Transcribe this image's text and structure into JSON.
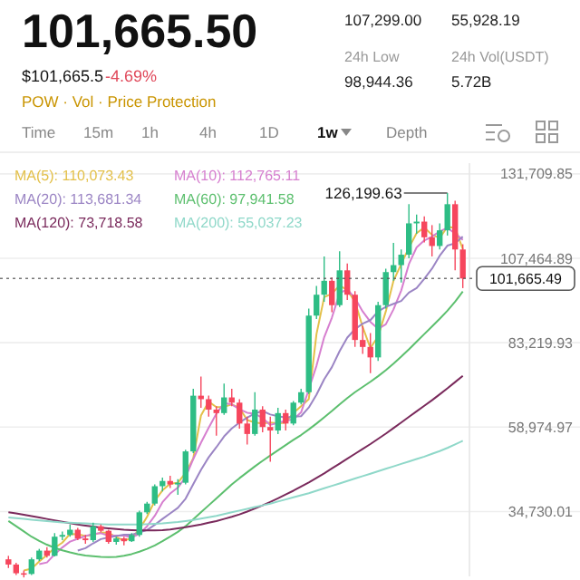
{
  "chart_data": {
    "type": "candlestick",
    "title": "101,665.50",
    "subtitle": "$101,665.5",
    "annotations": [
      "-4.69%",
      "POW · Vol · Price Protection",
      "107,299.00",
      "55,928.19",
      "24h Low",
      "24h Vol(USDT)",
      "98,944.36",
      "5.72B",
      "Time",
      "15m",
      "1h",
      "4h",
      "1D",
      "1w",
      "Depth",
      "126,199.63"
    ],
    "categories": [
      null,
      null,
      null,
      null,
      null,
      null,
      null,
      null,
      null,
      null,
      null,
      null,
      null,
      null,
      null,
      null,
      null,
      null,
      null,
      null,
      null,
      null,
      null,
      null,
      null,
      null,
      null,
      null,
      null,
      null,
      null,
      null,
      null,
      null,
      null,
      null,
      null,
      null,
      null,
      null,
      null,
      null,
      null,
      null,
      null,
      null,
      null,
      null,
      null,
      null,
      null,
      null,
      null,
      null,
      null,
      null,
      null,
      null,
      null,
      null
    ],
    "ohlc": [
      [
        21000,
        22000,
        18500,
        19500
      ],
      [
        19500,
        20000,
        16500,
        17000
      ],
      [
        17000,
        17800,
        15800,
        16800
      ],
      [
        16800,
        21500,
        16500,
        21000
      ],
      [
        21000,
        24000,
        20500,
        23500
      ],
      [
        23500,
        24500,
        21500,
        22000
      ],
      [
        22000,
        28500,
        21800,
        27500
      ],
      [
        27500,
        29000,
        26500,
        28000
      ],
      [
        28000,
        31000,
        27500,
        29500
      ],
      [
        29500,
        30000,
        26500,
        27000
      ],
      [
        27000,
        28000,
        25500,
        26500
      ],
      [
        26500,
        31500,
        26000,
        30500
      ],
      [
        30500,
        31000,
        28800,
        29200
      ],
      [
        29200,
        29500,
        25500,
        26000
      ],
      [
        26000,
        27500,
        25200,
        27000
      ],
      [
        27000,
        27500,
        25000,
        26200
      ],
      [
        26200,
        28500,
        26000,
        28000
      ],
      [
        28000,
        35000,
        27500,
        34500
      ],
      [
        34500,
        37500,
        34000,
        37000
      ],
      [
        37000,
        42500,
        36500,
        42000
      ],
      [
        42000,
        44500,
        40500,
        43500
      ],
      [
        43500,
        45000,
        41500,
        42500
      ],
      [
        42500,
        44000,
        39500,
        43000
      ],
      [
        43000,
        52500,
        42500,
        52000
      ],
      [
        52000,
        70000,
        51500,
        68000
      ],
      [
        68000,
        73500,
        64500,
        67000
      ],
      [
        67000,
        68000,
        62000,
        64000
      ],
      [
        64000,
        65000,
        56500,
        63000
      ],
      [
        63000,
        71500,
        62500,
        67500
      ],
      [
        67500,
        70000,
        65000,
        66000
      ],
      [
        66000,
        67000,
        58500,
        60000
      ],
      [
        60000,
        62000,
        54000,
        57000
      ],
      [
        57000,
        69000,
        56500,
        64000
      ],
      [
        64000,
        65000,
        57500,
        59000
      ],
      [
        59000,
        62000,
        49000,
        58000
      ],
      [
        58000,
        64500,
        57000,
        63000
      ],
      [
        63000,
        64000,
        58000,
        60000
      ],
      [
        60000,
        66500,
        59500,
        66000
      ],
      [
        66000,
        70000,
        65500,
        69000
      ],
      [
        69000,
        93000,
        68500,
        91000
      ],
      [
        91000,
        99500,
        90000,
        97000
      ],
      [
        97000,
        108000,
        95000,
        101000
      ],
      [
        101000,
        102000,
        92000,
        94000
      ],
      [
        94000,
        109500,
        93500,
        104000
      ],
      [
        104000,
        106000,
        95500,
        97000
      ],
      [
        97000,
        98000,
        82000,
        84000
      ],
      [
        84000,
        88000,
        80000,
        82000
      ],
      [
        82000,
        86000,
        74500,
        79000
      ],
      [
        79000,
        95000,
        78000,
        94000
      ],
      [
        94000,
        104500,
        93000,
        103500
      ],
      [
        103500,
        111900,
        101000,
        105500
      ],
      [
        105500,
        110000,
        100500,
        108500
      ],
      [
        108500,
        123000,
        107500,
        117500
      ],
      [
        117500,
        120000,
        114500,
        118000
      ],
      [
        118000,
        119500,
        112000,
        113500
      ],
      [
        113500,
        117000,
        108000,
        111000
      ],
      [
        111000,
        117500,
        110000,
        115500
      ],
      [
        115500,
        126199.63,
        114000,
        123000
      ],
      [
        123000,
        124000,
        104000,
        110000
      ],
      [
        110000,
        111500,
        98900,
        101665.49
      ]
    ],
    "colors": [
      "#f6465d",
      "#f6465d",
      "#f6465d",
      "#2ebd85",
      "#2ebd85",
      "#f6465d",
      "#2ebd85",
      "#2ebd85",
      "#2ebd85",
      "#f6465d",
      "#f6465d",
      "#2ebd85",
      "#f6465d",
      "#f6465d",
      "#2ebd85",
      "#f6465d",
      "#2ebd85",
      "#2ebd85",
      "#2ebd85",
      "#2ebd85",
      "#2ebd85",
      "#f6465d",
      "#2ebd85",
      "#2ebd85",
      "#2ebd85",
      "#f6465d",
      "#f6465d",
      "#f6465d",
      "#2ebd85",
      "#f6465d",
      "#f6465d",
      "#f6465d",
      "#2ebd85",
      "#f6465d",
      "#f6465d",
      "#2ebd85",
      "#f6465d",
      "#2ebd85",
      "#2ebd85",
      "#2ebd85",
      "#2ebd85",
      "#2ebd85",
      "#f6465d",
      "#2ebd85",
      "#f6465d",
      "#f6465d",
      "#f6465d",
      "#f6465d",
      "#2ebd85",
      "#2ebd85",
      "#2ebd85",
      "#2ebd85",
      "#2ebd85",
      "#2ebd85",
      "#f6465d",
      "#f6465d",
      "#2ebd85",
      "#2ebd85",
      "#f6465d",
      "#f6465d"
    ],
    "series": [
      {
        "type": "line",
        "name": "MA(5): 110,073.43",
        "color": "#e3c04a",
        "values": [
          null,
          null,
          17800,
          18300,
          20400,
          22200,
          24300,
          25800,
          28300,
          28200,
          27700,
          28000,
          28700,
          28600,
          27400,
          26400,
          27100,
          29600,
          33200,
          37800,
          40800,
          42700,
          43000,
          45800,
          50000,
          62300,
          66300,
          64700,
          64800,
          65500,
          64500,
          61000,
          60300,
          60000,
          60300,
          60000,
          60300,
          63000,
          65000,
          67000,
          85700,
          96300,
          97300,
          99700,
          98300,
          95000,
          87700,
          81700,
          85000,
          92200,
          101000,
          105800,
          110500,
          114700,
          116300,
          114200,
          113300,
          116500,
          116200,
          110073.43
        ]
      },
      {
        "type": "line",
        "name": "MA(10): 112,765.11",
        "color": "#d67fcf",
        "values": [
          null,
          null,
          null,
          null,
          19600,
          20100,
          22400,
          24400,
          26100,
          26900,
          27700,
          28300,
          28500,
          27800,
          27800,
          27800,
          27300,
          28300,
          30500,
          33500,
          37400,
          39900,
          41600,
          44600,
          49800,
          54500,
          58800,
          62800,
          65900,
          65500,
          64100,
          63100,
          62800,
          61600,
          59600,
          60200,
          60800,
          61200,
          63200,
          69800,
          76600,
          84800,
          90400,
          97400,
          98600,
          96000,
          92200,
          89200,
          87200,
          88500,
          92800,
          98200,
          105800,
          110600,
          112600,
          113700,
          115200,
          116200,
          114600,
          112765.11
        ]
      },
      {
        "type": "line",
        "name": "MA(20): 113,681.34",
        "color": "#9b85c4",
        "values": [
          null,
          null,
          null,
          null,
          null,
          null,
          null,
          null,
          null,
          23500,
          24200,
          25600,
          26800,
          27300,
          27700,
          28100,
          28100,
          28700,
          29400,
          30900,
          32600,
          34200,
          35800,
          38400,
          42600,
          46700,
          50300,
          53200,
          56300,
          58600,
          60300,
          61700,
          62900,
          63600,
          62600,
          62100,
          61700,
          62000,
          62100,
          64600,
          68300,
          72700,
          76200,
          80800,
          84700,
          87100,
          88700,
          89700,
          92200,
          93500,
          94400,
          95200,
          97600,
          98900,
          101600,
          104500,
          108200,
          111100,
          111800,
          113681.34
        ]
      },
      {
        "type": "line",
        "name": "MA(60): 97,941.58",
        "color": "#5cbf6e",
        "values": [
          32000,
          30500,
          29000,
          27500,
          26300,
          25200,
          24300,
          23600,
          23000,
          22500,
          22100,
          21900,
          21700,
          21600,
          21700,
          22000,
          22500,
          23200,
          24000,
          25000,
          26200,
          27500,
          28900,
          30500,
          32500,
          34500,
          36500,
          38500,
          40500,
          42500,
          44300,
          46000,
          47700,
          49300,
          50800,
          52300,
          53800,
          55300,
          56700,
          58300,
          60000,
          61800,
          63600,
          65500,
          67300,
          69000,
          70500,
          72000,
          73600,
          75300,
          77200,
          79200,
          81300,
          83500,
          85700,
          87900,
          90100,
          92400,
          95000,
          97941.58
        ]
      },
      {
        "type": "line",
        "name": "MA(120): 73,718.58",
        "color": "#7a2a5c",
        "values": [
          34500,
          34200,
          33800,
          33400,
          33000,
          32600,
          32200,
          31800,
          31400,
          31000,
          30700,
          30400,
          30100,
          29900,
          29700,
          29500,
          29400,
          29300,
          29300,
          29300,
          29400,
          29600,
          29900,
          30200,
          30600,
          31000,
          31500,
          32000,
          32600,
          33200,
          33900,
          34700,
          35600,
          36500,
          37500,
          38500,
          39600,
          40700,
          41900,
          43100,
          44400,
          45700,
          47100,
          48500,
          49900,
          51300,
          52700,
          54100,
          55600,
          57100,
          58700,
          60300,
          61900,
          63500,
          65100,
          66700,
          68400,
          70100,
          71900,
          73718.58
        ]
      },
      {
        "type": "line",
        "name": "MA(200): 55,037.23",
        "color": "#8fd8c9",
        "values": [
          33000,
          32800,
          32600,
          32400,
          32200,
          32000,
          31800,
          31600,
          31500,
          31400,
          31300,
          31200,
          31100,
          31000,
          31000,
          31000,
          31000,
          31000,
          31100,
          31200,
          31300,
          31500,
          31700,
          32000,
          32300,
          32700,
          33100,
          33500,
          34000,
          34500,
          35000,
          35500,
          36000,
          36500,
          37000,
          37600,
          38200,
          38800,
          39400,
          40000,
          40700,
          41400,
          42100,
          42800,
          43500,
          44200,
          44900,
          45600,
          46300,
          47000,
          47700,
          48400,
          49100,
          49800,
          50500,
          51300,
          52100,
          53000,
          54000,
          55037.23
        ]
      }
    ],
    "ylim": [
      16100,
      134800
    ],
    "yticks": [
      {
        "value": 131709.85,
        "label": "131,709.85"
      },
      {
        "value": 107464.89,
        "label": "107,464.89"
      },
      {
        "value": 83219.93,
        "label": "83,219.93"
      },
      {
        "value": 58974.97,
        "label": "58,974.97"
      },
      {
        "value": 34730.01,
        "label": "34,730.01"
      }
    ],
    "ref_lines": [
      {
        "axis": "y",
        "value": 101665.49,
        "label": "101,665.49",
        "line_style": "dotted",
        "color": "#555555"
      }
    ],
    "grid": "y",
    "legend": "top",
    "tick_labels": "y"
  }
}
